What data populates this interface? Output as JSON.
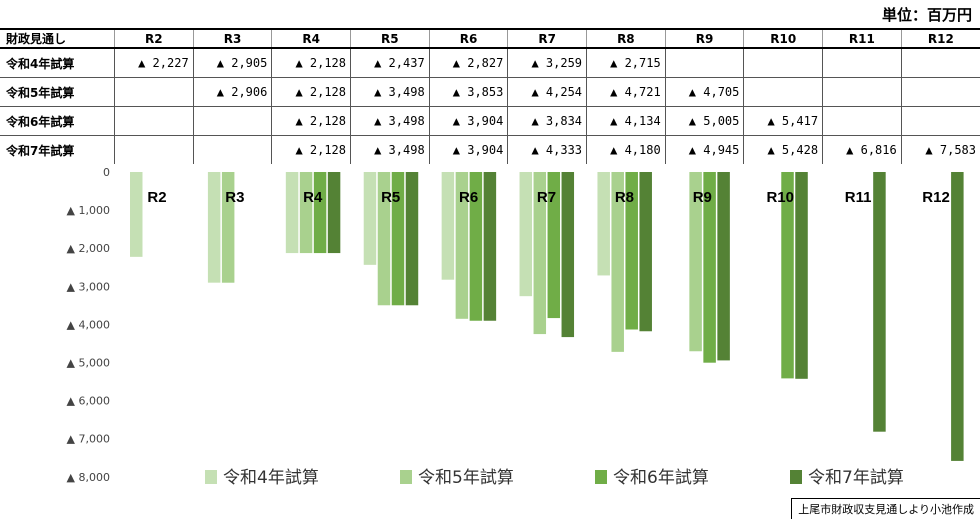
{
  "unit_label": "単位：百万円",
  "table": {
    "corner_label": "財政見通し",
    "columns": [
      "R2",
      "R3",
      "R4",
      "R5",
      "R6",
      "R7",
      "R8",
      "R9",
      "R10",
      "R11",
      "R12"
    ],
    "rows": [
      {
        "label": "令和4年試算",
        "cells": [
          "▲ 2,227",
          "▲ 2,905",
          "▲ 2,128",
          "▲ 2,437",
          "▲ 2,827",
          "▲ 3,259",
          "▲ 2,715",
          "",
          "",
          "",
          ""
        ]
      },
      {
        "label": "令和5年試算",
        "cells": [
          "",
          "▲ 2,906",
          "▲ 2,128",
          "▲ 3,498",
          "▲ 3,853",
          "▲ 4,254",
          "▲ 4,721",
          "▲ 4,705",
          "",
          "",
          ""
        ]
      },
      {
        "label": "令和6年試算",
        "cells": [
          "",
          "",
          "▲ 2,128",
          "▲ 3,498",
          "▲ 3,904",
          "▲ 3,834",
          "▲ 4,134",
          "▲ 5,005",
          "▲ 5,417",
          "",
          ""
        ]
      },
      {
        "label": "令和7年試算",
        "cells": [
          "",
          "",
          "▲ 2,128",
          "▲ 3,498",
          "▲ 3,904",
          "▲ 4,333",
          "▲ 4,180",
          "▲ 4,945",
          "▲ 5,428",
          "▲ 6,816",
          "▲ 7,583"
        ]
      }
    ]
  },
  "chart_data": {
    "type": "bar",
    "categories": [
      "R2",
      "R3",
      "R4",
      "R5",
      "R6",
      "R7",
      "R8",
      "R9",
      "R10",
      "R11",
      "R12"
    ],
    "series": [
      {
        "name": "令和4年試算",
        "color": "#c5e0b4",
        "values": [
          -2227,
          -2905,
          -2128,
          -2437,
          -2827,
          -3259,
          -2715,
          null,
          null,
          null,
          null
        ]
      },
      {
        "name": "令和5年試算",
        "color": "#a9d18e",
        "values": [
          null,
          -2906,
          -2128,
          -3498,
          -3853,
          -4254,
          -4721,
          -4705,
          null,
          null,
          null
        ]
      },
      {
        "name": "令和6年試算",
        "color": "#70ad47",
        "values": [
          null,
          null,
          -2128,
          -3498,
          -3904,
          -3834,
          -4134,
          -5005,
          -5417,
          null,
          null
        ]
      },
      {
        "name": "令和7年試算",
        "color": "#548235",
        "values": [
          null,
          null,
          -2128,
          -3498,
          -3904,
          -4333,
          -4180,
          -4945,
          -5428,
          -6816,
          -7583
        ]
      }
    ],
    "ylim": [
      -8000,
      0
    ],
    "yticks": [
      0,
      -1000,
      -2000,
      -3000,
      -4000,
      -5000,
      -6000,
      -7000,
      -8000
    ],
    "ytick_labels": [
      "0",
      "▲ 1,000",
      "▲ 2,000",
      "▲ 3,000",
      "▲ 4,000",
      "▲ 5,000",
      "▲ 6,000",
      "▲ 7,000",
      "▲ 8,000"
    ],
    "grid": false,
    "legend_position": "bottom"
  },
  "credit": "上尾市財政収支見通しより小池作成"
}
